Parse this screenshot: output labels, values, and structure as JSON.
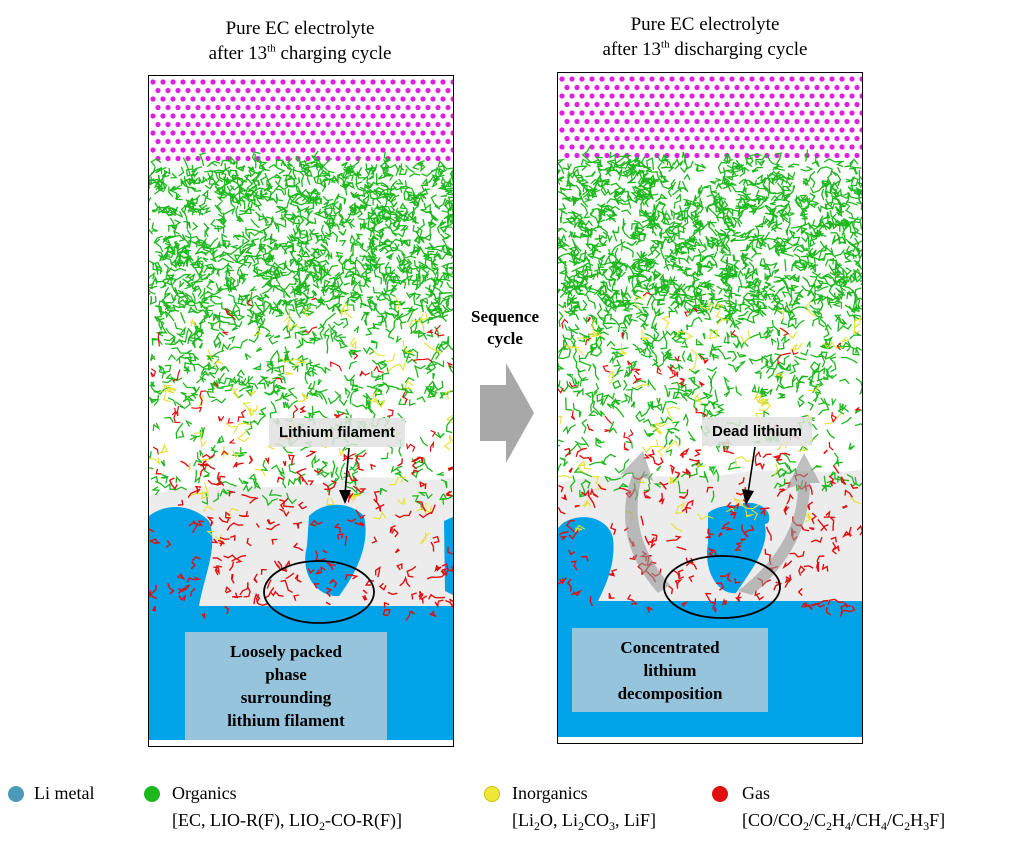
{
  "panels": [
    {
      "title_line1": "Pure EC electrolyte",
      "title_line2_pre": "after 13",
      "title_sup": "th",
      "title_line2_post": " charging cycle",
      "callout": "Lithium filament",
      "box_lines": [
        "Loosely packed",
        "phase",
        "surrounding",
        "lithium filament"
      ]
    },
    {
      "title_line1": "Pure EC electrolyte",
      "title_line2_pre": "after 13",
      "title_sup": "th",
      "title_line2_post": " discharging cycle",
      "callout": "Dead lithium",
      "box_lines": [
        "Concentrated",
        "lithium",
        "decomposition"
      ]
    }
  ],
  "arrow": {
    "line1": "Sequence",
    "line2": "cycle"
  },
  "legend": {
    "li_metal": "Li metal",
    "organics": "Organics",
    "organics_detail": [
      "[EC, LIO-R(F), LIO",
      "2",
      "-CO-R(F)]"
    ],
    "inorganics": "Inorganics",
    "inorganics_detail": [
      "[Li",
      "2",
      "O, Li",
      "2",
      "CO",
      "3",
      ", LiF]"
    ],
    "gas": "Gas",
    "gas_detail": [
      "[CO/CO",
      "2",
      "/C",
      "2",
      "H",
      "4",
      "/CH",
      "4",
      "/C",
      "2",
      "H",
      "3",
      "F]"
    ]
  },
  "colors": {
    "li_metal": "#00a2e8",
    "li_dot": "#4a9ab8",
    "organics": "#1db81d",
    "inorganics": "#e8e030",
    "gas": "#e01010",
    "surface": "#e020e0",
    "box": "#97c4dd"
  }
}
